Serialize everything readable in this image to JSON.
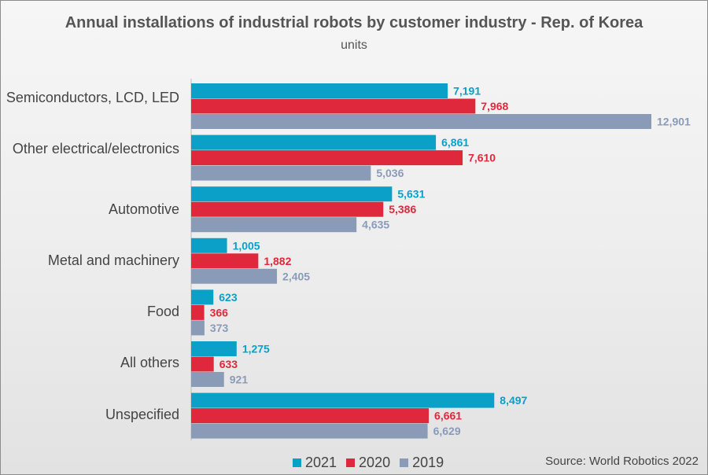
{
  "chart_data": {
    "type": "bar",
    "orientation": "horizontal",
    "title": "Annual installations of industrial robots by customer industry - Rep. of Korea",
    "subtitle": "units",
    "categories": [
      "Semiconductors, LCD, LED",
      "Other electrical/electronics",
      "Automotive",
      "Metal and machinery",
      "Food",
      "All others",
      "Unspecified"
    ],
    "series": [
      {
        "name": "2021",
        "color": "#0aa0c8",
        "values": [
          7191,
          6861,
          5631,
          1005,
          623,
          1275,
          8497
        ]
      },
      {
        "name": "2020",
        "color": "#e0283c",
        "values": [
          7968,
          7610,
          5386,
          1882,
          366,
          633,
          6661
        ]
      },
      {
        "name": "2019",
        "color": "#8a9bb8",
        "values": [
          12901,
          5036,
          4635,
          2405,
          373,
          921,
          6629
        ]
      }
    ],
    "xlim": [
      0,
      14000
    ],
    "source": "Source: World Robotics 2022"
  }
}
